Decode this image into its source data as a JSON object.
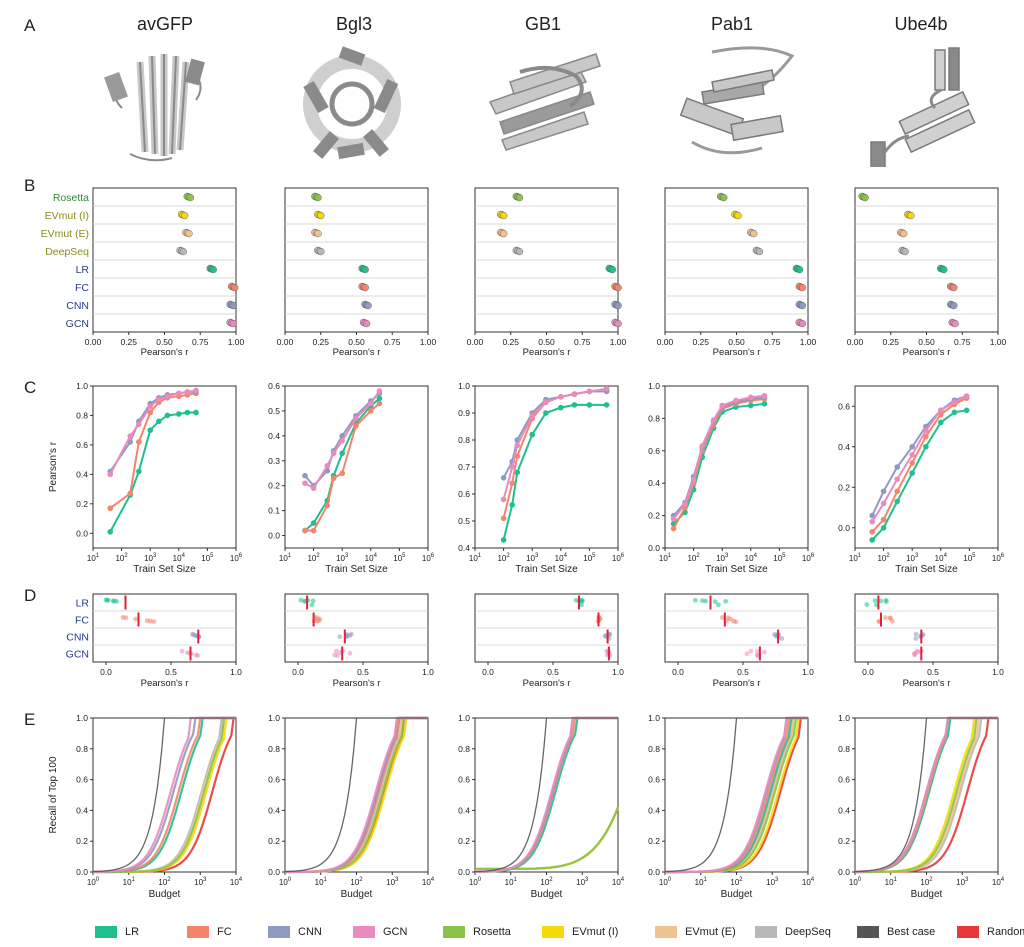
{
  "panel_letters": [
    "A",
    "B",
    "C",
    "D",
    "E"
  ],
  "proteins": [
    "avGFP",
    "Bgl3",
    "GB1",
    "Pab1",
    "Ube4b"
  ],
  "method_colors": {
    "Rosetta": "#8bc34a",
    "EVmut (I)": "#f5d90a",
    "EVmut (E)": "#f0c28f",
    "DeepSeq": "#b8b8b8",
    "LR": "#1fbf8f",
    "FC": "#f4846a",
    "CNN": "#8e9ac2",
    "GCN": "#e98bbd",
    "Best case": "#555555",
    "Random": "#e8383b"
  },
  "legend": [
    {
      "label": "LR",
      "color": "#1fbf8f"
    },
    {
      "label": "FC",
      "color": "#f4846a"
    },
    {
      "label": "CNN",
      "color": "#8e9ac2"
    },
    {
      "label": "GCN",
      "color": "#e98bbd"
    },
    {
      "label": "Rosetta",
      "color": "#8bc34a"
    },
    {
      "label": "EVmut (I)",
      "color": "#f5d90a"
    },
    {
      "label": "EVmut (E)",
      "color": "#f0c28f"
    },
    {
      "label": "DeepSeq",
      "color": "#b8b8b8"
    },
    {
      "label": "Best case",
      "color": "#555555"
    },
    {
      "label": "Random",
      "color": "#e8383b"
    }
  ],
  "chart_data": [
    {
      "panel": "B",
      "type": "scatter",
      "xlabel": "Pearson's r",
      "xlim": [
        0,
        1
      ],
      "xticks": [
        "0.00",
        "0.25",
        "0.50",
        "0.75",
        "1.00"
      ],
      "rows": [
        "Rosetta",
        "EVmut (I)",
        "EVmut (E)",
        "DeepSeq",
        "LR",
        "FC",
        "CNN",
        "GCN"
      ],
      "row_colors": [
        "#2e8b3a",
        "#8a8a20",
        "#8a8a20",
        "#8a8a20",
        "#2a3a8a",
        "#2a3a8a",
        "#2a3a8a",
        "#2a3a8a"
      ],
      "series": [
        {
          "name": "avGFP",
          "values": [
            0.67,
            0.63,
            0.66,
            0.62,
            0.83,
            0.98,
            0.97,
            0.97
          ]
        },
        {
          "name": "Bgl3",
          "values": [
            0.22,
            0.24,
            0.22,
            0.24,
            0.55,
            0.55,
            0.57,
            0.56
          ]
        },
        {
          "name": "GB1",
          "values": [
            0.3,
            0.19,
            0.19,
            0.3,
            0.95,
            0.99,
            0.99,
            0.99
          ]
        },
        {
          "name": "Pab1",
          "values": [
            0.4,
            0.5,
            0.61,
            0.65,
            0.93,
            0.95,
            0.95,
            0.95
          ]
        },
        {
          "name": "Ube4b",
          "values": [
            0.06,
            0.38,
            0.33,
            0.34,
            0.61,
            0.68,
            0.68,
            0.69
          ]
        }
      ]
    },
    {
      "panel": "C",
      "type": "line",
      "xlabel": "Train Set Size",
      "ylabel": "Pearson's r",
      "xscale": "log",
      "xlim_exp": [
        1,
        6
      ],
      "series_names": [
        "LR",
        "FC",
        "CNN",
        "GCN"
      ],
      "plots": [
        {
          "name": "avGFP",
          "ylim": [
            -0.1,
            1.0
          ],
          "yticks": [
            "0.0",
            "0.2",
            "0.4",
            "0.6",
            "0.8",
            "1.0"
          ],
          "x": [
            40,
            200,
            400,
            1000,
            2000,
            4000,
            10000,
            20000,
            40000
          ],
          "series": [
            {
              "name": "LR",
              "values": [
                0.01,
                0.26,
                0.42,
                0.7,
                0.76,
                0.8,
                0.81,
                0.82,
                0.82
              ]
            },
            {
              "name": "FC",
              "values": [
                0.17,
                0.27,
                0.62,
                0.82,
                0.89,
                0.92,
                0.93,
                0.94,
                0.95
              ]
            },
            {
              "name": "CNN",
              "values": [
                0.42,
                0.62,
                0.76,
                0.88,
                0.92,
                0.94,
                0.95,
                0.96,
                0.96
              ]
            },
            {
              "name": "GCN",
              "values": [
                0.4,
                0.66,
                0.74,
                0.86,
                0.91,
                0.93,
                0.95,
                0.96,
                0.97
              ]
            }
          ]
        },
        {
          "name": "Bgl3",
          "ylim": [
            -0.05,
            0.6
          ],
          "yticks": [
            "0.0",
            "0.1",
            "0.2",
            "0.3",
            "0.4",
            "0.5",
            "0.6"
          ],
          "x": [
            50,
            100,
            300,
            500,
            1000,
            3000,
            10000,
            20000
          ],
          "series": [
            {
              "name": "LR",
              "values": [
                0.02,
                0.05,
                0.14,
                0.24,
                0.33,
                0.45,
                0.52,
                0.55
              ]
            },
            {
              "name": "FC",
              "values": [
                0.02,
                0.02,
                0.12,
                0.23,
                0.25,
                0.44,
                0.5,
                0.53
              ]
            },
            {
              "name": "CNN",
              "values": [
                0.24,
                0.2,
                0.26,
                0.34,
                0.4,
                0.48,
                0.54,
                0.57
              ]
            },
            {
              "name": "GCN",
              "values": [
                0.21,
                0.19,
                0.28,
                0.33,
                0.38,
                0.47,
                0.53,
                0.58
              ]
            }
          ]
        },
        {
          "name": "GB1",
          "ylim": [
            0.4,
            1.0
          ],
          "yticks": [
            "0.4",
            "0.5",
            "0.6",
            "0.7",
            "0.8",
            "0.9",
            "1.0"
          ],
          "x": [
            100,
            200,
            300,
            1000,
            3000,
            10000,
            30000,
            100000,
            400000
          ],
          "series": [
            {
              "name": "LR",
              "values": [
                0.43,
                0.56,
                0.68,
                0.82,
                0.9,
                0.92,
                0.93,
                0.93,
                0.93
              ]
            },
            {
              "name": "FC",
              "values": [
                0.51,
                0.64,
                0.74,
                0.88,
                0.94,
                0.96,
                0.97,
                0.98,
                0.98
              ]
            },
            {
              "name": "CNN",
              "values": [
                0.66,
                0.72,
                0.8,
                0.9,
                0.95,
                0.96,
                0.97,
                0.98,
                0.98
              ]
            },
            {
              "name": "GCN",
              "values": [
                0.58,
                0.7,
                0.78,
                0.89,
                0.94,
                0.96,
                0.97,
                0.98,
                0.99
              ]
            }
          ]
        },
        {
          "name": "Pab1",
          "ylim": [
            0.0,
            1.0
          ],
          "yticks": [
            "0.0",
            "0.2",
            "0.4",
            "0.6",
            "0.8",
            "1.0"
          ],
          "x": [
            20,
            50,
            100,
            200,
            500,
            1000,
            3000,
            10000,
            30000
          ],
          "series": [
            {
              "name": "LR",
              "values": [
                0.15,
                0.22,
                0.36,
                0.56,
                0.74,
                0.84,
                0.87,
                0.88,
                0.89
              ]
            },
            {
              "name": "FC",
              "values": [
                0.12,
                0.25,
                0.4,
                0.6,
                0.76,
                0.86,
                0.89,
                0.91,
                0.92
              ]
            },
            {
              "name": "CNN",
              "values": [
                0.2,
                0.28,
                0.44,
                0.62,
                0.78,
                0.87,
                0.9,
                0.92,
                0.93
              ]
            },
            {
              "name": "GCN",
              "values": [
                0.18,
                0.27,
                0.42,
                0.63,
                0.79,
                0.88,
                0.91,
                0.93,
                0.94
              ]
            }
          ]
        },
        {
          "name": "Ube4b",
          "ylim": [
            -0.1,
            0.7
          ],
          "yticks": [
            "0.0",
            "0.2",
            "0.4",
            "0.6"
          ],
          "x": [
            40,
            100,
            300,
            1000,
            3000,
            10000,
            30000,
            80000
          ],
          "series": [
            {
              "name": "LR",
              "values": [
                -0.06,
                0.0,
                0.13,
                0.27,
                0.4,
                0.52,
                0.57,
                0.58
              ]
            },
            {
              "name": "FC",
              "values": [
                -0.02,
                0.04,
                0.18,
                0.32,
                0.45,
                0.56,
                0.61,
                0.64
              ]
            },
            {
              "name": "CNN",
              "values": [
                0.06,
                0.18,
                0.3,
                0.4,
                0.5,
                0.58,
                0.63,
                0.65
              ]
            },
            {
              "name": "GCN",
              "values": [
                0.03,
                0.12,
                0.24,
                0.36,
                0.48,
                0.58,
                0.62,
                0.65
              ]
            }
          ]
        }
      ]
    },
    {
      "panel": "D",
      "type": "scatter",
      "xlabel": "Pearson's r",
      "xlim": [
        -0.1,
        1.0
      ],
      "xticks": [
        "0.0",
        "0.5",
        "1.0"
      ],
      "rows": [
        "LR",
        "FC",
        "CNN",
        "GCN"
      ],
      "series": [
        {
          "name": "avGFP",
          "means": [
            0.15,
            0.25,
            0.71,
            0.65
          ],
          "spread": [
            0.15,
            0.14,
            0.05,
            0.07
          ]
        },
        {
          "name": "Bgl3",
          "means": [
            0.07,
            0.12,
            0.36,
            0.34
          ],
          "spread": [
            0.05,
            0.06,
            0.06,
            0.06
          ]
        },
        {
          "name": "GB1",
          "means": [
            0.7,
            0.85,
            0.92,
            0.93
          ],
          "spread": [
            0.03,
            0.02,
            0.02,
            0.02
          ]
        },
        {
          "name": "Pab1",
          "means": [
            0.25,
            0.36,
            0.77,
            0.63
          ],
          "spread": [
            0.12,
            0.1,
            0.03,
            0.1
          ]
        },
        {
          "name": "Ube4b",
          "means": [
            0.08,
            0.1,
            0.41,
            0.41
          ],
          "spread": [
            0.1,
            0.1,
            0.05,
            0.06
          ]
        }
      ]
    },
    {
      "panel": "E",
      "type": "line",
      "xlabel": "Budget",
      "ylabel": "Recall of Top 100",
      "xscale": "log",
      "xlim_exp": [
        0,
        4
      ],
      "ylim": [
        0,
        1
      ],
      "yticks": [
        "0.0",
        "0.2",
        "0.4",
        "0.6",
        "0.8",
        "1.0"
      ],
      "plots": [
        {
          "name": "avGFP",
          "midpoints": {
            "Best case": 100,
            "LR": 300,
            "FC": 250,
            "CNN": 180,
            "GCN": 150,
            "Rosetta": 1300,
            "EVmut (I)": 1500,
            "EVmut (E)": 1200,
            "DeepSeq": 1100,
            "Random": 2200
          }
        },
        {
          "name": "Bgl3",
          "midpoints": {
            "Best case": 100,
            "LR": 400,
            "FC": 420,
            "CNN": 380,
            "GCN": 350,
            "Rosetta": 550,
            "EVmut (I)": 650,
            "EVmut (E)": 520,
            "DeepSeq": 480,
            "Random": 600
          }
        },
        {
          "name": "GB1",
          "midpoints": {
            "Best case": 100,
            "LR": 180,
            "FC": 160,
            "CNN": 150,
            "GCN": 140,
            "Rosetta": 35000,
            "EVmut (I)": 40000,
            "EVmut (E)": 38000,
            "DeepSeq": 30000,
            "Random": 45000
          }
        },
        {
          "name": "Pab1",
          "midpoints": {
            "Best case": 100,
            "LR": 900,
            "FC": 800,
            "CNN": 700,
            "GCN": 650,
            "Rosetta": 1200,
            "EVmut (I)": 1500,
            "EVmut (E)": 1100,
            "DeepSeq": 1000,
            "Random": 1700
          }
        },
        {
          "name": "Ube4b",
          "midpoints": {
            "Best case": 100,
            "LR": 120,
            "FC": 110,
            "CNN": 100,
            "GCN": 100,
            "Rosetta": 700,
            "EVmut (I)": 600,
            "EVmut (E)": 800,
            "DeepSeq": 900,
            "Random": 1400
          }
        }
      ]
    }
  ]
}
